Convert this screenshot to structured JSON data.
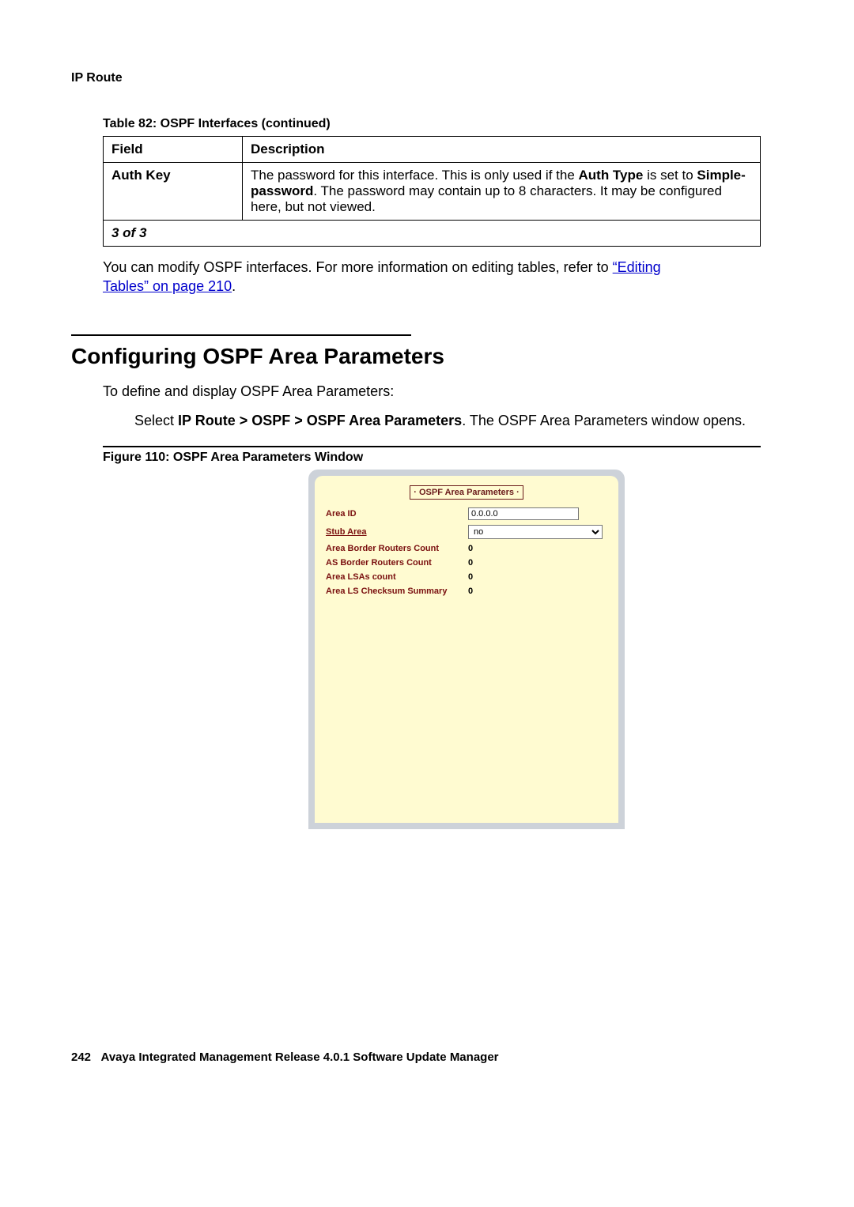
{
  "header": {
    "section": "IP Route"
  },
  "table": {
    "caption": "Table 82: OSPF Interfaces (continued)",
    "columns": [
      "Field",
      "Description"
    ],
    "rows": [
      {
        "field": "Auth Key",
        "desc_pre": "The password for this interface. This is only used if the ",
        "desc_b1": "Auth Type",
        "desc_mid": " is set to ",
        "desc_b2": "Simple-password",
        "desc_post": ". The password may contain up to 8 characters. It may be configured here, but not viewed."
      }
    ],
    "pager": "3 of 3"
  },
  "body1_pre": "You can modify OSPF interfaces. For more information on editing tables, refer to ",
  "body1_link1": "“Editing ",
  "body1_link2": "Tables” on page 210",
  "body1_post": ".",
  "h2": "Configuring OSPF Area Parameters",
  "para1": "To define and display OSPF Area Parameters:",
  "para2_pre": "Select ",
  "para2_bold": "IP Route > OSPF > OSPF Area Parameters",
  "para2_post": ". The OSPF Area Parameters window opens.",
  "figure_caption": "Figure 110: OSPF Area Parameters Window",
  "panel": {
    "title": "· OSPF Area Parameters ·",
    "area_id_label": "Area ID",
    "area_id_value": "0.0.0.0",
    "stub_area_label": "Stub Area",
    "stub_area_value": "no",
    "abr_label": "Area Border Routers Count",
    "abr_value": "0",
    "asbr_label": "AS Border Routers Count",
    "asbr_value": "0",
    "lsa_label": "Area LSAs count",
    "lsa_value": "0",
    "lscs_label": "Area LS Checksum Summary",
    "lscs_value": "0"
  },
  "footer_page": "242",
  "footer_text": "Avaya Integrated Management Release 4.0.1 Software Update Manager"
}
